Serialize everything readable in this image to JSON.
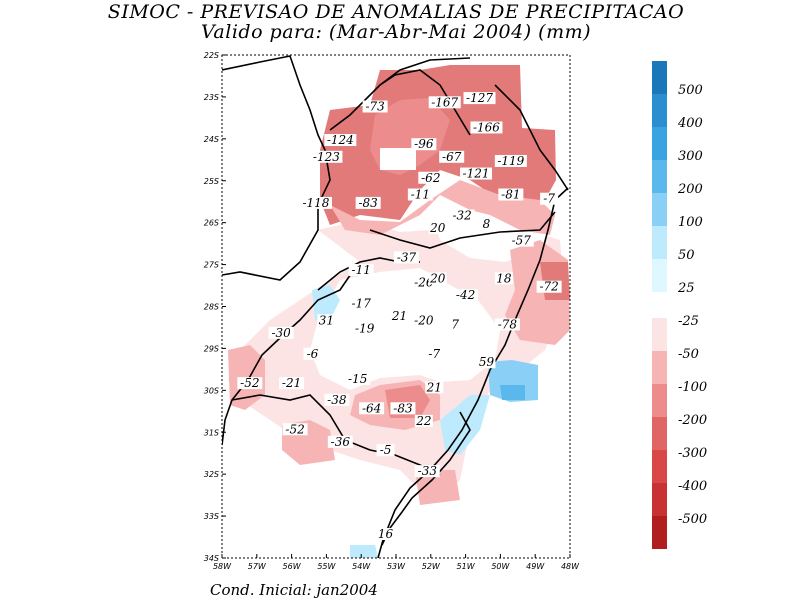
{
  "title": "SIMOC - PREVISAO DE ANOMALIAS DE PRECIPITACAO",
  "subtitle": "Valido para: (Mar-Abr-Mai 2004) (mm)",
  "footer": "Cond. Inicial: jan2004",
  "map": {
    "lon_range": [
      -58,
      -48
    ],
    "lat_range": [
      -34,
      -22
    ],
    "x_ticks": [
      "58W",
      "57W",
      "56W",
      "55W",
      "54W",
      "53W",
      "52W",
      "51W",
      "50W",
      "49W",
      "48W"
    ],
    "y_ticks": [
      "22S",
      "23S",
      "24S",
      "25S",
      "26S",
      "27S",
      "28S",
      "29S",
      "30S",
      "31S",
      "32S",
      "33S",
      "34S"
    ],
    "values": [
      {
        "t": "-73",
        "lon": -53.6,
        "lat": -23.3
      },
      {
        "t": "-167",
        "lon": -51.6,
        "lat": -23.2
      },
      {
        "t": "-127",
        "lon": -50.6,
        "lat": -23.1
      },
      {
        "t": "-166",
        "lon": -50.4,
        "lat": -23.8
      },
      {
        "t": "-124",
        "lon": -54.6,
        "lat": -24.1
      },
      {
        "t": "-96",
        "lon": -52.2,
        "lat": -24.2
      },
      {
        "t": "-123",
        "lon": -55.0,
        "lat": -24.5
      },
      {
        "t": "-67",
        "lon": -51.4,
        "lat": -24.5
      },
      {
        "t": "-119",
        "lon": -49.7,
        "lat": -24.6
      },
      {
        "t": "-121",
        "lon": -50.7,
        "lat": -24.9
      },
      {
        "t": "-62",
        "lon": -52.0,
        "lat": -25.0
      },
      {
        "t": "-11",
        "lon": -52.3,
        "lat": -25.4
      },
      {
        "t": "-81",
        "lon": -49.7,
        "lat": -25.4
      },
      {
        "t": "-7",
        "lon": -48.6,
        "lat": -25.5
      },
      {
        "t": "-118",
        "lon": -55.3,
        "lat": -25.6
      },
      {
        "t": "-83",
        "lon": -53.8,
        "lat": -25.6
      },
      {
        "t": "-32",
        "lon": -51.1,
        "lat": -25.9
      },
      {
        "t": "8",
        "lon": -50.4,
        "lat": -26.1
      },
      {
        "t": "20",
        "lon": -51.8,
        "lat": -26.2
      },
      {
        "t": "-57",
        "lon": -49.4,
        "lat": -26.5
      },
      {
        "t": "-37",
        "lon": -52.7,
        "lat": -26.9
      },
      {
        "t": "-11",
        "lon": -54.0,
        "lat": -27.2
      },
      {
        "t": "-26",
        "lon": -52.2,
        "lat": -27.5
      },
      {
        "t": "20",
        "lon": -51.8,
        "lat": -27.4
      },
      {
        "t": "18",
        "lon": -49.9,
        "lat": -27.4
      },
      {
        "t": "-72",
        "lon": -48.6,
        "lat": -27.6
      },
      {
        "t": "-42",
        "lon": -51.0,
        "lat": -27.8
      },
      {
        "t": "-17",
        "lon": -54.0,
        "lat": -28.0
      },
      {
        "t": "31",
        "lon": -55.0,
        "lat": -28.4
      },
      {
        "t": "21",
        "lon": -52.9,
        "lat": -28.3
      },
      {
        "t": "-20",
        "lon": -52.2,
        "lat": -28.4
      },
      {
        "t": "7",
        "lon": -51.3,
        "lat": -28.5
      },
      {
        "t": "-78",
        "lon": -49.8,
        "lat": -28.5
      },
      {
        "t": "-30",
        "lon": -56.3,
        "lat": -28.7
      },
      {
        "t": "-19",
        "lon": -53.9,
        "lat": -28.6
      },
      {
        "t": "-6",
        "lon": -55.4,
        "lat": -29.2
      },
      {
        "t": "-7",
        "lon": -51.9,
        "lat": -29.2
      },
      {
        "t": "59",
        "lon": -50.4,
        "lat": -29.4
      },
      {
        "t": "-52",
        "lon": -57.2,
        "lat": -29.9
      },
      {
        "t": "-21",
        "lon": -56.0,
        "lat": -29.9
      },
      {
        "t": "-15",
        "lon": -54.1,
        "lat": -29.8
      },
      {
        "t": "21",
        "lon": -51.9,
        "lat": -30.0
      },
      {
        "t": "-38",
        "lon": -54.7,
        "lat": -30.3
      },
      {
        "t": "-64",
        "lon": -53.7,
        "lat": -30.5
      },
      {
        "t": "-83",
        "lon": -52.8,
        "lat": -30.5
      },
      {
        "t": "22",
        "lon": -52.2,
        "lat": -30.8
      },
      {
        "t": "-52",
        "lon": -55.9,
        "lat": -31.0
      },
      {
        "t": "-36",
        "lon": -54.6,
        "lat": -31.3
      },
      {
        "t": "-5",
        "lon": -53.3,
        "lat": -31.5
      },
      {
        "t": "-33",
        "lon": -52.1,
        "lat": -32.0
      },
      {
        "t": "16",
        "lon": -53.3,
        "lat": -33.5
      }
    ]
  },
  "legend": {
    "positive": [
      {
        "label": "500",
        "color": "#1a78b8"
      },
      {
        "label": "400",
        "color": "#2a8ed0"
      },
      {
        "label": "300",
        "color": "#3aa4e0"
      },
      {
        "label": "200",
        "color": "#5ab8ec"
      },
      {
        "label": "100",
        "color": "#8ad0f6"
      },
      {
        "label": "50",
        "color": "#bdeafc"
      },
      {
        "label": "25",
        "color": "#dff8ff"
      }
    ],
    "negative": [
      {
        "label": "-25",
        "color": "#fde4e4"
      },
      {
        "label": "-50",
        "color": "#f6b4b4"
      },
      {
        "label": "-100",
        "color": "#ec8c8c"
      },
      {
        "label": "-200",
        "color": "#e06666"
      },
      {
        "label": "-300",
        "color": "#d84848"
      },
      {
        "label": "-400",
        "color": "#c83232"
      },
      {
        "label": "-500",
        "color": "#b01e1e"
      }
    ]
  }
}
